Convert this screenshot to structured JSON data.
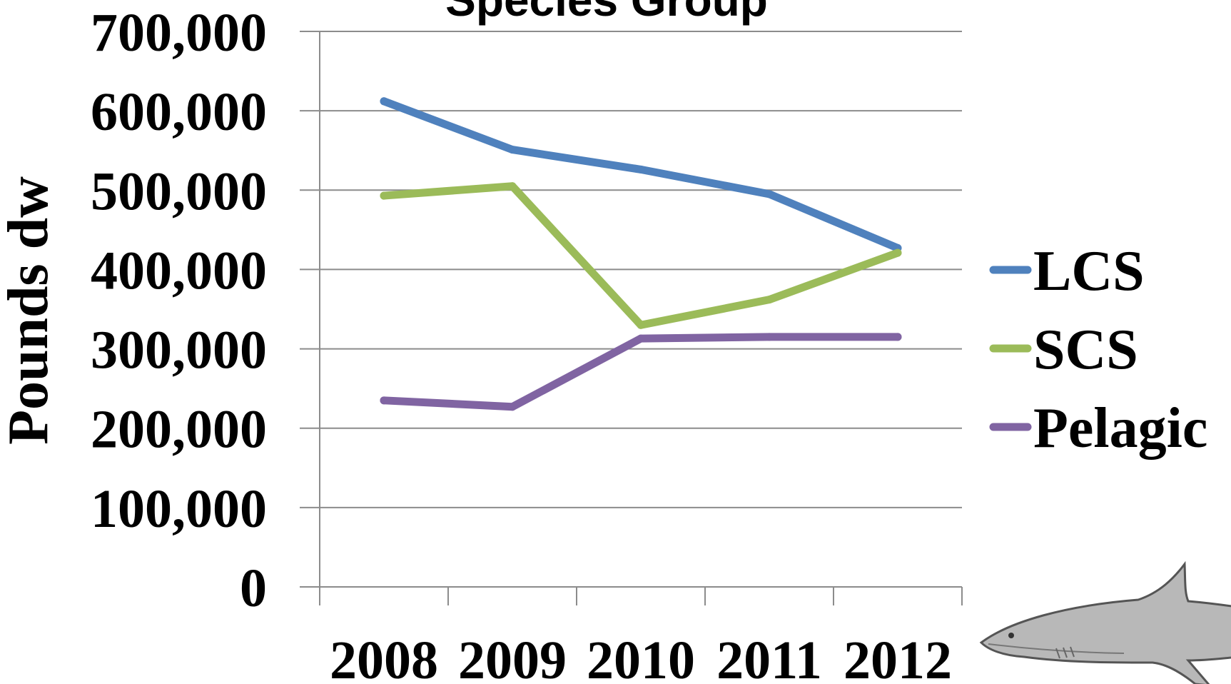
{
  "chart_data": {
    "type": "line",
    "title": "Species Group",
    "ylabel": "Pounds dw",
    "xlabel": "",
    "categories": [
      "2008",
      "2009",
      "2010",
      "2011",
      "2012"
    ],
    "ylim": [
      0,
      700000
    ],
    "yticks": [
      "0",
      "100,000",
      "200,000",
      "300,000",
      "400,000",
      "500,000",
      "600,000",
      "700,000"
    ],
    "grid": true,
    "legend": "right",
    "series": [
      {
        "name": "LCS",
        "color": "#4F81BD",
        "values": [
          612000,
          551000,
          526000,
          495000,
          427000
        ]
      },
      {
        "name": "SCS",
        "color": "#9BBB59",
        "values": [
          493000,
          505000,
          330000,
          362000,
          421000
        ]
      },
      {
        "name": "Pelagic",
        "color": "#8064A2",
        "values": [
          235000,
          227000,
          313000,
          315000,
          315000
        ]
      }
    ]
  },
  "decor": {
    "shark_illustration": "shark-illustration"
  }
}
